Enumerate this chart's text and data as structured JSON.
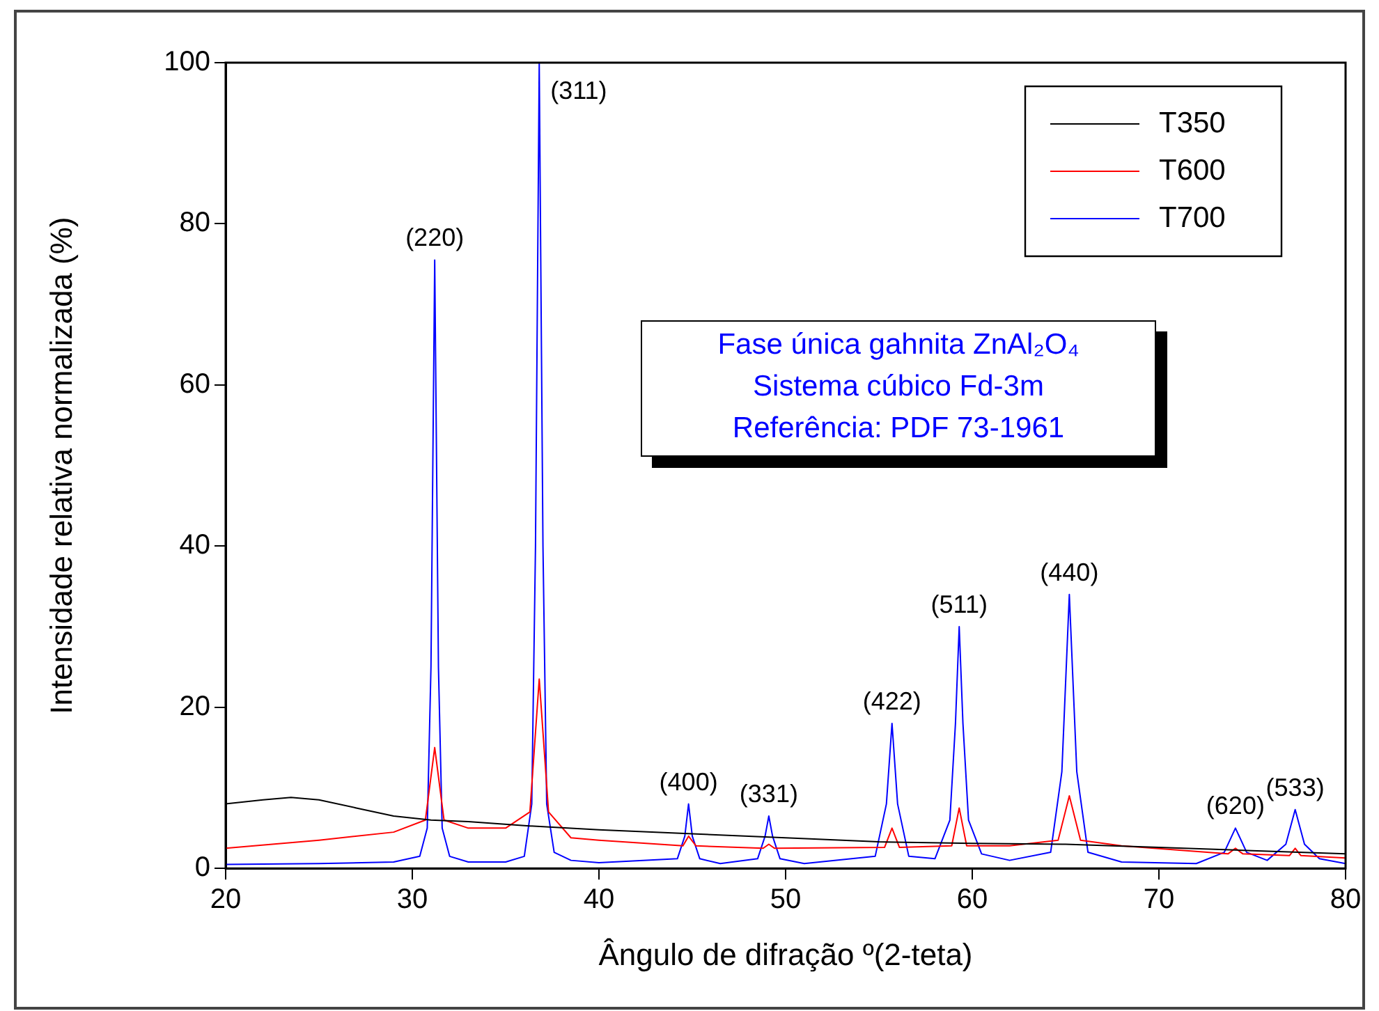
{
  "chart_data": {
    "type": "line",
    "xlabel": "Ângulo de difração º(2-teta)",
    "ylabel": "Intensidade relativa normalizada (%)",
    "xlim": [
      20,
      80
    ],
    "xticks": [
      20,
      30,
      40,
      50,
      60,
      70,
      80
    ],
    "ylim": [
      0,
      100
    ],
    "yticks": [
      0,
      20,
      40,
      60,
      80,
      100
    ],
    "grid": false,
    "legend": "top right",
    "marker": "none",
    "line_style": "solid",
    "series": [
      {
        "name": "T350",
        "color": "#000000",
        "x": [
          20,
          22,
          23.5,
          25,
          27,
          29,
          31,
          33,
          36,
          40,
          45,
          50,
          55,
          60,
          65,
          70,
          75,
          80
        ],
        "values": [
          8,
          8.5,
          8.8,
          8.5,
          7.5,
          6.5,
          6,
          5.8,
          5.3,
          4.8,
          4.3,
          3.8,
          3.3,
          3.1,
          3,
          2.6,
          2.2,
          1.8
        ]
      },
      {
        "name": "T600",
        "color": "#ff0000",
        "x": [
          20,
          25,
          29,
          30.7,
          31.2,
          31.7,
          33,
          35,
          36.3,
          36.8,
          37.3,
          38.5,
          40,
          44.5,
          44.8,
          45.2,
          48.8,
          49.1,
          49.4,
          55.3,
          55.7,
          56.1,
          58.9,
          59.3,
          59.7,
          62,
          64.6,
          65.2,
          65.8,
          68,
          73.7,
          74.1,
          74.5,
          77,
          77.3,
          77.6,
          80
        ],
        "values": [
          2.5,
          3.5,
          4.5,
          6,
          15,
          6,
          5,
          5,
          7,
          23.5,
          7,
          3.8,
          3.5,
          2.8,
          4,
          2.8,
          2.5,
          3,
          2.5,
          2.6,
          5,
          2.6,
          2.8,
          7.5,
          2.8,
          2.8,
          3.5,
          9,
          3.5,
          2.8,
          1.8,
          2.5,
          1.8,
          1.6,
          2.5,
          1.6,
          1.3
        ]
      },
      {
        "name": "T700",
        "color": "#0000ff",
        "x": [
          20,
          25,
          29,
          30.4,
          30.8,
          31.0,
          31.2,
          31.4,
          31.6,
          32,
          33,
          35,
          36.0,
          36.4,
          36.6,
          36.8,
          37.0,
          37.2,
          37.6,
          38.5,
          40,
          44.2,
          44.6,
          44.8,
          45.0,
          45.4,
          46.5,
          48.5,
          48.9,
          49.1,
          49.3,
          49.7,
          51,
          54.8,
          55.4,
          55.7,
          56.0,
          56.6,
          58,
          58.8,
          59.1,
          59.3,
          59.5,
          59.8,
          60.5,
          62,
          64.2,
          64.8,
          65.2,
          65.6,
          66.2,
          68,
          72,
          73.5,
          74.1,
          74.7,
          75.8,
          76.8,
          77.3,
          77.8,
          78.6,
          80
        ],
        "values": [
          0.5,
          0.6,
          0.8,
          1.5,
          5,
          25,
          75.5,
          25,
          5,
          1.5,
          0.8,
          0.8,
          1.5,
          8,
          40,
          100,
          40,
          8,
          2,
          1,
          0.7,
          1.2,
          4,
          8,
          4,
          1.2,
          0.6,
          1.2,
          4,
          6.5,
          4,
          1.2,
          0.6,
          1.5,
          8,
          18,
          8,
          1.5,
          1.2,
          6,
          18,
          30,
          18,
          6,
          1.8,
          1,
          2,
          12,
          34,
          12,
          2,
          0.8,
          0.6,
          2,
          5,
          2,
          1,
          3,
          7.3,
          3,
          1.2,
          0.6
        ]
      }
    ],
    "annotations": [
      {
        "text": "(220)",
        "x": 31.2,
        "y": 75.5
      },
      {
        "text": "(311)",
        "x": 36.8,
        "y": 100
      },
      {
        "text": "(400)",
        "x": 44.8,
        "y": 8
      },
      {
        "text": "(331)",
        "x": 49.1,
        "y": 6.5
      },
      {
        "text": "(422)",
        "x": 55.7,
        "y": 18
      },
      {
        "text": "(511)",
        "x": 59.3,
        "y": 30
      },
      {
        "text": "(440)",
        "x": 65.2,
        "y": 34
      },
      {
        "text": "(620)",
        "x": 74.1,
        "y": 5
      },
      {
        "text": "(533)",
        "x": 77.3,
        "y": 7.3
      },
      "Fase única gahnita ZnAl₂O₄",
      "Sistema cúbico Fd-3m",
      "Referência: PDF 73-1961"
    ]
  }
}
